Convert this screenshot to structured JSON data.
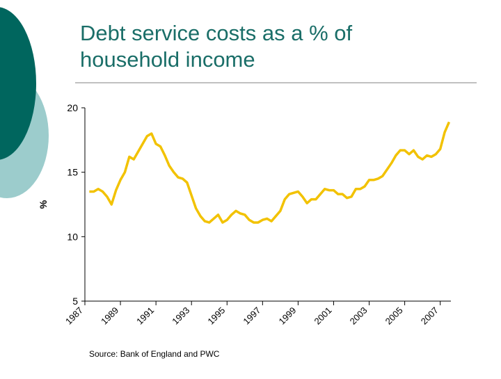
{
  "chart_data": {
    "type": "line",
    "title": "Debt service costs as a % of household income",
    "ylabel": "%",
    "source": "Source: Bank of England and PWC",
    "xlim": [
      1987,
      2007.6
    ],
    "xticks": [
      1987,
      1989,
      1991,
      1993,
      1995,
      1997,
      1999,
      2001,
      2003,
      2005,
      2007
    ],
    "ylim": [
      5,
      20
    ],
    "yticks": [
      5,
      10,
      15,
      20
    ],
    "x": [
      1987.25,
      1987.5,
      1987.75,
      1988,
      1988.25,
      1988.5,
      1988.75,
      1989,
      1989.25,
      1989.5,
      1989.75,
      1990,
      1990.25,
      1990.5,
      1990.75,
      1991,
      1991.25,
      1991.5,
      1991.75,
      1992,
      1992.25,
      1992.5,
      1992.75,
      1993,
      1993.25,
      1993.5,
      1993.75,
      1994,
      1994.25,
      1994.5,
      1994.75,
      1995,
      1995.25,
      1995.5,
      1995.75,
      1996,
      1996.25,
      1996.5,
      1996.75,
      1997,
      1997.25,
      1997.5,
      1997.75,
      1998,
      1998.25,
      1998.5,
      1998.75,
      1999,
      1999.25,
      1999.5,
      1999.75,
      2000,
      2000.25,
      2000.5,
      2000.75,
      2001,
      2001.25,
      2001.5,
      2001.75,
      2002,
      2002.25,
      2002.5,
      2002.75,
      2003,
      2003.25,
      2003.5,
      2003.75,
      2004,
      2004.25,
      2004.5,
      2004.75,
      2005,
      2005.25,
      2005.5,
      2005.75,
      2006,
      2006.25,
      2006.5,
      2006.75,
      2007,
      2007.25,
      2007.5
    ],
    "series": [
      {
        "color": "#f2c200",
        "values": [
          13.5,
          13.5,
          13.7,
          13.5,
          13.1,
          12.5,
          13.6,
          14.4,
          15.0,
          16.2,
          16.0,
          16.6,
          17.2,
          17.8,
          18.0,
          17.2,
          17.0,
          16.3,
          15.5,
          15.0,
          14.6,
          14.5,
          14.2,
          13.2,
          12.2,
          11.6,
          11.2,
          11.1,
          11.4,
          11.7,
          11.1,
          11.3,
          11.7,
          12.0,
          11.8,
          11.7,
          11.3,
          11.1,
          11.1,
          11.3,
          11.4,
          11.2,
          11.6,
          12.0,
          12.9,
          13.3,
          13.4,
          13.5,
          13.1,
          12.6,
          12.9,
          12.9,
          13.3,
          13.7,
          13.6,
          13.6,
          13.3,
          13.3,
          13.0,
          13.1,
          13.7,
          13.7,
          13.9,
          14.4,
          14.4,
          14.5,
          14.7,
          15.2,
          15.7,
          16.3,
          16.7,
          16.7,
          16.4,
          16.7,
          16.2,
          16.0,
          16.3,
          16.2,
          16.4,
          16.8,
          18.1,
          18.9
        ]
      }
    ]
  }
}
